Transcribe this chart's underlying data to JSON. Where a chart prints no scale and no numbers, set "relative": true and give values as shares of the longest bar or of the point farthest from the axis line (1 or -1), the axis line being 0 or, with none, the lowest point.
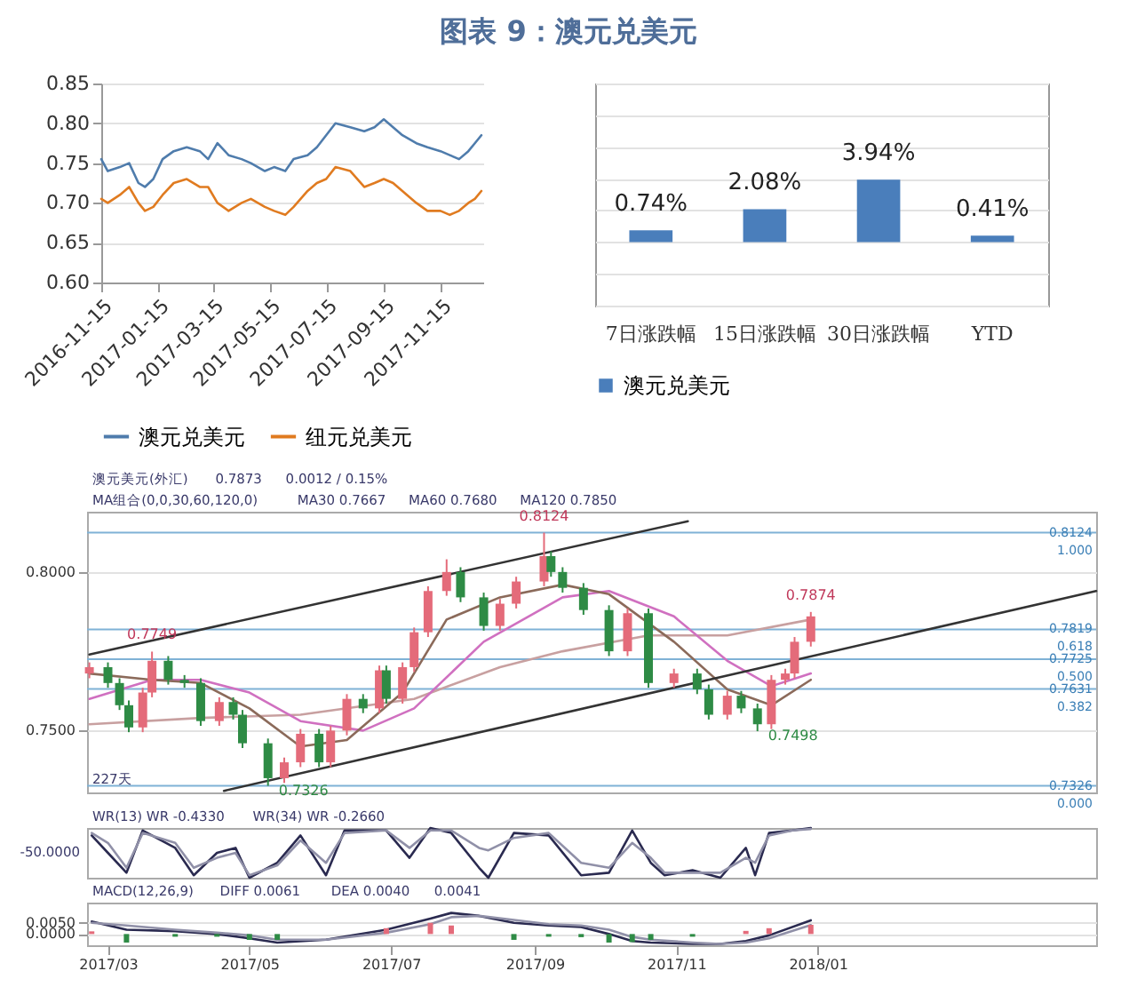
{
  "chart_data": [
    {
      "type": "line",
      "title": "图表 9：澳元兑美元",
      "x": [
        "2016-11-15",
        "2016-11-22",
        "2016-12-05",
        "2016-12-15",
        "2016-12-25",
        "2017-01-01",
        "2017-01-10",
        "2017-01-20",
        "2017-02-01",
        "2017-02-15",
        "2017-03-01",
        "2017-03-10",
        "2017-03-20",
        "2017-04-01",
        "2017-04-15",
        "2017-04-25",
        "2017-05-10",
        "2017-05-20",
        "2017-06-01",
        "2017-06-10",
        "2017-06-25",
        "2017-07-05",
        "2017-07-15",
        "2017-07-25",
        "2017-08-10",
        "2017-08-25",
        "2017-09-05",
        "2017-09-15",
        "2017-09-25",
        "2017-10-05",
        "2017-10-20",
        "2017-11-01",
        "2017-11-15",
        "2017-11-25",
        "2017-12-05",
        "2017-12-15",
        "2017-12-22",
        "2017-12-29"
      ],
      "series": [
        {
          "name": "澳元兑美元",
          "color": "#4f7cac",
          "values": [
            0.755,
            0.74,
            0.745,
            0.75,
            0.725,
            0.72,
            0.73,
            0.755,
            0.765,
            0.77,
            0.765,
            0.755,
            0.775,
            0.76,
            0.755,
            0.75,
            0.74,
            0.745,
            0.74,
            0.755,
            0.76,
            0.77,
            0.785,
            0.8,
            0.795,
            0.79,
            0.795,
            0.805,
            0.795,
            0.785,
            0.775,
            0.77,
            0.765,
            0.76,
            0.755,
            0.765,
            0.775,
            0.785
          ]
        },
        {
          "name": "纽元兑美元",
          "color": "#e07b20",
          "values": [
            0.705,
            0.7,
            0.71,
            0.72,
            0.7,
            0.69,
            0.695,
            0.71,
            0.725,
            0.73,
            0.72,
            0.72,
            0.7,
            0.69,
            0.7,
            0.705,
            0.695,
            0.69,
            0.685,
            0.695,
            0.715,
            0.725,
            0.73,
            0.745,
            0.74,
            0.72,
            0.725,
            0.73,
            0.725,
            0.715,
            0.7,
            0.69,
            0.69,
            0.685,
            0.69,
            0.7,
            0.705,
            0.715
          ]
        }
      ],
      "xlim": [
        "2016-11-15",
        "2017-12-31"
      ],
      "xticks": [
        "2016-11-15",
        "2017-01-15",
        "2017-03-15",
        "2017-05-15",
        "2017-07-15",
        "2017-09-15",
        "2017-11-15"
      ],
      "ylim": [
        0.6,
        0.85
      ],
      "yticks": [
        {
          "value": 0.6,
          "label": "0.60"
        },
        {
          "value": 0.65,
          "label": "0.65"
        },
        {
          "value": 0.7,
          "label": "0.70"
        },
        {
          "value": 0.75,
          "label": "0.75"
        },
        {
          "value": 0.8,
          "label": "0.80"
        },
        {
          "value": 0.85,
          "label": "0.85"
        }
      ],
      "grid": "y",
      "legend": "bottom"
    },
    {
      "type": "bar",
      "categories": [
        "7日涨跌幅",
        "15日涨跌幅",
        "30日涨跌幅",
        "YTD"
      ],
      "series": [
        {
          "name": "澳元兑美元",
          "color": "#4a7ebb",
          "values": [
            0.74,
            2.08,
            3.94,
            0.41
          ],
          "value_labels": [
            "0.74%",
            "2.08%",
            "3.94%",
            "0.41%"
          ]
        }
      ],
      "ylim": [
        -4,
        10
      ],
      "yticks": [
        -4,
        -2,
        0,
        2,
        4,
        6,
        8,
        10
      ],
      "tick_labels": "x",
      "grid": "y",
      "legend": "bottom"
    },
    {
      "type": "candlestick",
      "x": [
        "2017-02-21",
        "2017-03-01",
        "2017-03-06",
        "2017-03-10",
        "2017-03-16",
        "2017-03-20",
        "2017-03-27",
        "2017-04-03",
        "2017-04-10",
        "2017-04-18",
        "2017-04-24",
        "2017-04-28",
        "2017-05-09",
        "2017-05-16",
        "2017-05-23",
        "2017-05-31",
        "2017-06-05",
        "2017-06-12",
        "2017-06-19",
        "2017-06-26",
        "2017-06-29",
        "2017-07-06",
        "2017-07-11",
        "2017-07-17",
        "2017-07-25",
        "2017-07-31",
        "2017-08-10",
        "2017-08-17",
        "2017-08-24",
        "2017-09-05",
        "2017-09-08",
        "2017-09-13",
        "2017-09-22",
        "2017-10-03",
        "2017-10-11",
        "2017-10-20",
        "2017-10-31",
        "2017-11-10",
        "2017-11-15",
        "2017-11-23",
        "2017-11-29",
        "2017-12-06",
        "2017-12-12",
        "2017-12-18",
        "2017-12-22",
        "2017-12-29"
      ],
      "ohlc": [
        [
          0.768,
          0.7715,
          0.7665,
          0.77
        ],
        [
          0.77,
          0.7715,
          0.7635,
          0.765
        ],
        [
          0.765,
          0.7665,
          0.7565,
          0.758
        ],
        [
          0.758,
          0.7595,
          0.7495,
          0.751
        ],
        [
          0.751,
          0.7635,
          0.7495,
          0.762
        ],
        [
          0.762,
          0.7749,
          0.7605,
          0.772
        ],
        [
          0.772,
          0.7735,
          0.7645,
          0.766
        ],
        [
          0.766,
          0.7675,
          0.7635,
          0.765
        ],
        [
          0.765,
          0.7665,
          0.7515,
          0.753
        ],
        [
          0.753,
          0.7605,
          0.7515,
          0.759
        ],
        [
          0.759,
          0.7605,
          0.7535,
          0.755
        ],
        [
          0.755,
          0.7565,
          0.7445,
          0.746
        ],
        [
          0.746,
          0.7475,
          0.7326,
          0.735
        ],
        [
          0.735,
          0.7415,
          0.7335,
          0.74
        ],
        [
          0.74,
          0.7505,
          0.7385,
          0.749
        ],
        [
          0.749,
          0.7505,
          0.7385,
          0.74
        ],
        [
          0.74,
          0.7515,
          0.7385,
          0.75
        ],
        [
          0.75,
          0.7615,
          0.7485,
          0.76
        ],
        [
          0.76,
          0.7615,
          0.7555,
          0.757
        ],
        [
          0.757,
          0.7705,
          0.7555,
          0.769
        ],
        [
          0.769,
          0.7705,
          0.7585,
          0.76
        ],
        [
          0.76,
          0.7715,
          0.7585,
          0.77
        ],
        [
          0.77,
          0.7825,
          0.7685,
          0.781
        ],
        [
          0.781,
          0.7955,
          0.7795,
          0.794
        ],
        [
          0.794,
          0.804,
          0.7925,
          0.8
        ],
        [
          0.8,
          0.8015,
          0.7905,
          0.792
        ],
        [
          0.792,
          0.7935,
          0.7815,
          0.783
        ],
        [
          0.783,
          0.7915,
          0.7815,
          0.79
        ],
        [
          0.79,
          0.7985,
          0.7885,
          0.797
        ],
        [
          0.797,
          0.8124,
          0.7955,
          0.805
        ],
        [
          0.805,
          0.8065,
          0.7985,
          0.8
        ],
        [
          0.8,
          0.8015,
          0.7935,
          0.795
        ],
        [
          0.795,
          0.7965,
          0.7865,
          0.788
        ],
        [
          0.788,
          0.7895,
          0.7735,
          0.775
        ],
        [
          0.775,
          0.7885,
          0.7735,
          0.787
        ],
        [
          0.787,
          0.7885,
          0.7635,
          0.765
        ],
        [
          0.765,
          0.7695,
          0.7635,
          0.768
        ],
        [
          0.768,
          0.7695,
          0.7615,
          0.763
        ],
        [
          0.763,
          0.7645,
          0.7535,
          0.755
        ],
        [
          0.755,
          0.7625,
          0.7535,
          0.761
        ],
        [
          0.761,
          0.7625,
          0.7555,
          0.757
        ],
        [
          0.757,
          0.7585,
          0.7498,
          0.752
        ],
        [
          0.752,
          0.7675,
          0.7505,
          0.766
        ],
        [
          0.766,
          0.7695,
          0.7645,
          0.768
        ],
        [
          0.768,
          0.7795,
          0.7665,
          0.778
        ],
        [
          0.778,
          0.7874,
          0.7765,
          0.786
        ]
      ],
      "colors": [
        "#e46b7a",
        "#2e8b45",
        "#2e8b45",
        "#2e8b45",
        "#e46b7a",
        "#e46b7a",
        "#2e8b45",
        "#2e8b45",
        "#2e8b45",
        "#e46b7a",
        "#2e8b45",
        "#2e8b45",
        "#2e8b45",
        "#e46b7a",
        "#e46b7a",
        "#2e8b45",
        "#e46b7a",
        "#e46b7a",
        "#2e8b45",
        "#e46b7a",
        "#2e8b45",
        "#e46b7a",
        "#e46b7a",
        "#e46b7a",
        "#e46b7a",
        "#2e8b45",
        "#2e8b45",
        "#e46b7a",
        "#e46b7a",
        "#e46b7a",
        "#2e8b45",
        "#2e8b45",
        "#2e8b45",
        "#2e8b45",
        "#e46b7a",
        "#2e8b45",
        "#e46b7a",
        "#2e8b45",
        "#2e8b45",
        "#e46b7a",
        "#2e8b45",
        "#2e8b45",
        "#e46b7a",
        "#e46b7a",
        "#e46b7a",
        "#e46b7a"
      ],
      "series": [
        {
          "type": "line",
          "color": "#c8a0a0",
          "x": [
            "2017-02-21",
            "2017-04-10",
            "2017-05-23",
            "2017-07-11",
            "2017-08-17",
            "2017-09-13",
            "2017-10-20",
            "2017-11-23",
            "2017-12-29"
          ],
          "values": [
            0.752,
            0.754,
            0.755,
            0.76,
            0.77,
            0.775,
            0.78,
            0.78,
            0.785
          ]
        },
        {
          "type": "line",
          "color": "#d070c0",
          "x": [
            "2017-02-21",
            "2017-03-20",
            "2017-04-10",
            "2017-05-01",
            "2017-05-23",
            "2017-06-19",
            "2017-07-11",
            "2017-08-10",
            "2017-09-13",
            "2017-10-03",
            "2017-10-31",
            "2017-11-23",
            "2017-12-12",
            "2017-12-29"
          ],
          "values": [
            0.76,
            0.766,
            0.766,
            0.762,
            0.753,
            0.75,
            0.757,
            0.778,
            0.792,
            0.794,
            0.786,
            0.772,
            0.764,
            0.768
          ]
        },
        {
          "type": "line",
          "color": "#8b6a5a",
          "x": [
            "2017-02-21",
            "2017-03-20",
            "2017-04-10",
            "2017-05-01",
            "2017-05-23",
            "2017-06-12",
            "2017-07-06",
            "2017-07-25",
            "2017-08-17",
            "2017-09-13",
            "2017-10-03",
            "2017-10-31",
            "2017-11-23",
            "2017-12-12",
            "2017-12-29"
          ],
          "values": [
            0.768,
            0.766,
            0.765,
            0.757,
            0.745,
            0.747,
            0.762,
            0.785,
            0.792,
            0.796,
            0.793,
            0.778,
            0.763,
            0.758,
            0.766
          ]
        },
        {
          "type": "line",
          "color": "#333333",
          "x": [
            "2017-02-21",
            "2017-11-06"
          ],
          "values": [
            0.774,
            0.816
          ]
        },
        {
          "type": "line",
          "color": "#333333",
          "x": [
            "2017-04-20",
            "2018-05-01"
          ],
          "values": [
            0.731,
            0.794
          ]
        }
      ],
      "xlim": [
        "2017-02-20",
        "2018-05-01"
      ],
      "ylim": [
        0.7305,
        0.819
      ],
      "yticks": [
        {
          "value": 0.75,
          "label": "0.7500"
        },
        {
          "value": 0.8,
          "label": "0.8000"
        }
      ],
      "ref_lines": [
        {
          "axis": "y",
          "value": 0.8124,
          "label": "0.8124\n1.000",
          "color": "#7fb2d6"
        },
        {
          "axis": "y",
          "value": 0.7819,
          "label": "0.7819\n0.618",
          "color": "#7fb2d6"
        },
        {
          "axis": "y",
          "value": 0.7725,
          "label": "0.7725\n0.500",
          "color": "#7fb2d6"
        },
        {
          "axis": "y",
          "value": 0.7631,
          "label": "0.7631\n0.382",
          "color": "#7fb2d6"
        },
        {
          "axis": "y",
          "value": 0.7326,
          "label": "0.7326\n0.000",
          "color": "#7fb2d6"
        }
      ],
      "annotations": [
        "澳元美元(外汇)",
        "0.7873",
        "0.0012 / 0.15%",
        "MA组合(0,0,30,60,120,0)",
        "MA30 0.7667",
        "MA60 0.7680",
        "MA120 0.7850",
        "227天",
        {
          "text": "0.8124",
          "x": "2017-09-05",
          "y": 0.8124
        },
        {
          "text": "0.7749",
          "x": "2017-03-20",
          "y": 0.7749
        },
        {
          "text": "0.7326",
          "x": "2017-05-09",
          "y": 0.7326
        },
        {
          "text": "0.7498",
          "x": "2017-12-06",
          "y": 0.7498
        },
        {
          "text": "0.7874",
          "x": "2017-12-29",
          "y": 0.7874
        }
      ],
      "tick_labels": "y",
      "grid": "y"
    },
    {
      "type": "line",
      "relative": true,
      "x": [
        "2017-02-22",
        "2017-03-01",
        "2017-03-09",
        "2017-03-16",
        "2017-03-30",
        "2017-04-07",
        "2017-04-17",
        "2017-04-25",
        "2017-05-01",
        "2017-05-13",
        "2017-05-23",
        "2017-06-03",
        "2017-06-11",
        "2017-06-29",
        "2017-07-09",
        "2017-07-18",
        "2017-07-27",
        "2017-08-08",
        "2017-08-12",
        "2017-08-23",
        "2017-09-07",
        "2017-09-21",
        "2017-10-03",
        "2017-10-13",
        "2017-10-21",
        "2017-10-27",
        "2017-11-08",
        "2017-11-20",
        "2017-12-01",
        "2017-12-05",
        "2017-12-11",
        "2017-12-21",
        "2017-12-29"
      ],
      "series": [
        {
          "color": "#2a2a50",
          "values": [
            0.85,
            0.5,
            0.1,
            0.95,
            0.6,
            0.05,
            0.5,
            0.6,
            0,
            0.3,
            0.85,
            0.05,
            0.95,
            0.95,
            0.4,
            1,
            0.9,
            0.2,
            0,
            0.9,
            0.85,
            0.05,
            0.1,
            0.95,
            0.3,
            0.05,
            0.15,
            0,
            0.6,
            0.05,
            0.9,
            0.95,
            1
          ]
        },
        {
          "color": "#9090a8",
          "values": [
            0.9,
            0.7,
            0.2,
            0.9,
            0.7,
            0.2,
            0.4,
            0.5,
            0.05,
            0.25,
            0.75,
            0.3,
            0.9,
            0.95,
            0.6,
            0.95,
            0.95,
            0.6,
            0.55,
            0.8,
            0.9,
            0.3,
            0.2,
            0.7,
            0.4,
            0.1,
            0.1,
            0.1,
            0.4,
            0.3,
            0.85,
            0.95,
            0.98
          ]
        }
      ],
      "xlim": [
        "2017-02-20",
        "2018-05-01"
      ],
      "annotations": [
        "WR(13) WR -0.4330",
        "WR(34) WR -0.2660",
        "-50.0000"
      ],
      "tick_labels": false
    },
    {
      "type": "line",
      "x": [
        "2017-02-22",
        "2017-03-09",
        "2017-03-30",
        "2017-04-17",
        "2017-05-01",
        "2017-05-13",
        "2017-06-03",
        "2017-06-29",
        "2017-07-18",
        "2017-07-27",
        "2017-08-08",
        "2017-08-23",
        "2017-09-07",
        "2017-09-21",
        "2017-10-03",
        "2017-10-13",
        "2017-10-21",
        "2017-11-08",
        "2017-11-20",
        "2017-12-01",
        "2017-12-11",
        "2017-12-29"
      ],
      "series": [
        {
          "color": "#2a2a50",
          "values": [
            0.0056,
            0.0019,
            0.0013,
            0,
            -0.0019,
            -0.0038,
            -0.0025,
            0.0019,
            0.0069,
            0.0094,
            0.0081,
            0.005,
            0.0038,
            0.0031,
            0,
            -0.0031,
            -0.0038,
            -0.0044,
            -0.0044,
            -0.0031,
            -0.0006,
            0.0061
          ]
        },
        {
          "color": "#9090a8",
          "values": [
            0.005,
            0.0038,
            0.0019,
            0.0006,
            -0.0006,
            -0.0025,
            -0.0025,
            0.0006,
            0.0044,
            0.0075,
            0.0081,
            0.0063,
            0.0044,
            0.0038,
            0.0019,
            -0.0013,
            -0.0025,
            -0.0038,
            -0.0044,
            -0.0038,
            -0.0019,
            0.004
          ]
        },
        {
          "type": "bar",
          "colors": [
            "#e46b7a",
            "#2e8b45",
            "#2e8b45",
            "#2e8b45",
            "#2e8b45",
            "#2e8b45",
            "#e46b7a",
            "#e46b7a",
            "#e46b7a",
            "#e46b7a",
            "#e46b7a",
            "#2e8b45",
            "#2e8b45",
            "#2e8b45",
            "#2e8b45",
            "#2e8b45",
            "#2e8b45",
            "#2e8b45",
            "#e46b7a",
            "#e46b7a",
            "#e46b7a",
            "#e46b7a"
          ],
          "values": [
            0.0012,
            -0.0038,
            -0.0012,
            -0.0012,
            -0.0026,
            -0.0026,
            0,
            0.0026,
            0.005,
            0.0038,
            0,
            -0.0026,
            -0.0012,
            -0.0014,
            -0.0038,
            -0.0036,
            -0.0026,
            -0.0012,
            0,
            0.0014,
            0.0026,
            0.0041
          ]
        }
      ],
      "xlim": [
        "2017-02-20",
        "2018-05-01"
      ],
      "xticks": [
        {
          "value": "2017-03-01",
          "label": "2017/03"
        },
        {
          "value": "2017-05-01",
          "label": "2017/05"
        },
        {
          "value": "2017-07-01",
          "label": "2017/07"
        },
        {
          "value": "2017-09-01",
          "label": "2017/09"
        },
        {
          "value": "2017-11-01",
          "label": "2017/11"
        },
        {
          "value": "2018-01-01",
          "label": "2018/01"
        }
      ],
      "ylim": [
        -0.005,
        0.014
      ],
      "yticks": [
        {
          "value": 0,
          "label": "0.0000"
        },
        {
          "value": 0.005,
          "label": "0.0050"
        }
      ],
      "annotations": [
        "MACD(12,26,9)",
        "DIFF 0.0061",
        "DEA 0.0040",
        "0.0041"
      ],
      "grid": "y"
    }
  ]
}
